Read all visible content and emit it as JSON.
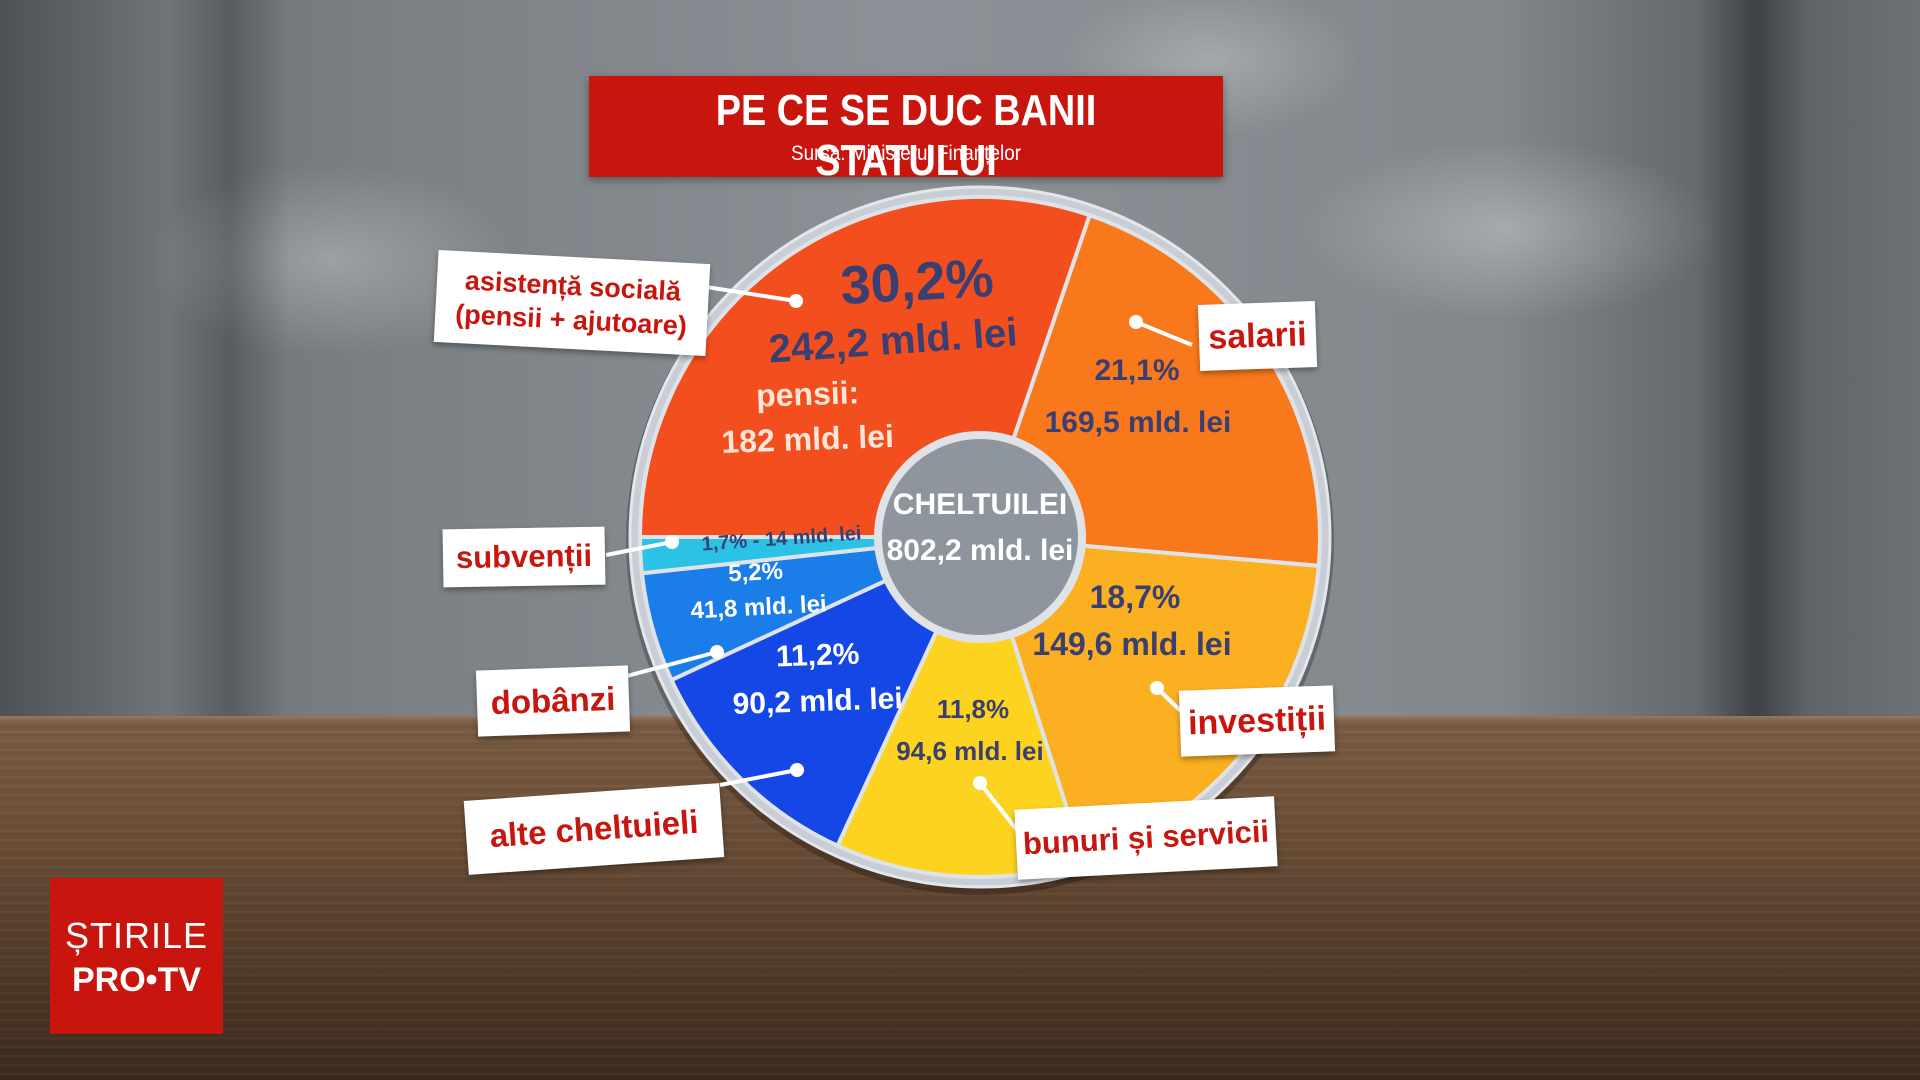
{
  "header": {
    "title": "PE CE SE DUC BANII STATULUI",
    "source": "Sursa: Ministerul Finanțelor"
  },
  "logo": {
    "line1": "ȘTIRILE",
    "line2": "PRO•TV"
  },
  "colors": {
    "title_bg": "#c8160f",
    "label_text": "#c8160f",
    "value_text_dark": "#3a3f72",
    "value_text_light": "#ffffff"
  },
  "chart_data": {
    "type": "pie",
    "title": "PE CE SE DUC BANII STATULUI",
    "subtitle": "Sursa: Ministerul Finanțelor",
    "center": {
      "line1": "CHELTUILEI",
      "line2": "802,2 mld. lei"
    },
    "slices": [
      {
        "label": "asistență socială\n(pensii + ajutoare)",
        "percent": 30.2,
        "value": 242.2,
        "pct_text": "30,2%",
        "val_text": "242,2 mld. lei",
        "extra": "pensii:\n182 mld. lei",
        "color": "#f24e1e",
        "text_color": "#3a3f72"
      },
      {
        "label": "salarii",
        "percent": 21.1,
        "value": 169.5,
        "pct_text": "21,1%",
        "val_text": "169,5 mld. lei",
        "color": "#f9781c",
        "text_color": "#3a3f72"
      },
      {
        "label": "investiții",
        "percent": 18.7,
        "value": 149.6,
        "pct_text": "18,7%",
        "val_text": "149,6 mld. lei",
        "color": "#fbb022",
        "text_color": "#3a3f72"
      },
      {
        "label": "bunuri și servicii",
        "percent": 11.8,
        "value": 94.6,
        "pct_text": "11,8%",
        "val_text": "94,6 mld. lei",
        "color": "#fcd31f",
        "text_color": "#3a3f72"
      },
      {
        "label": "alte cheltuieli",
        "percent": 11.2,
        "value": 90.2,
        "pct_text": "11,2%",
        "val_text": "90,2 mld. lei",
        "color": "#1547e6",
        "text_color": "#ffffff"
      },
      {
        "label": "dobânzi",
        "percent": 5.2,
        "value": 41.8,
        "pct_text": "5,2%",
        "val_text": "41,8 mld. lei",
        "color": "#1b7ee8",
        "text_color": "#ffffff"
      },
      {
        "label": "subvenții",
        "percent": 1.7,
        "value": 14,
        "pct_text": "1,7% - 14 mld. lei",
        "val_text": "",
        "color": "#2cc2e6",
        "text_color": "#3a3f72"
      }
    ]
  }
}
